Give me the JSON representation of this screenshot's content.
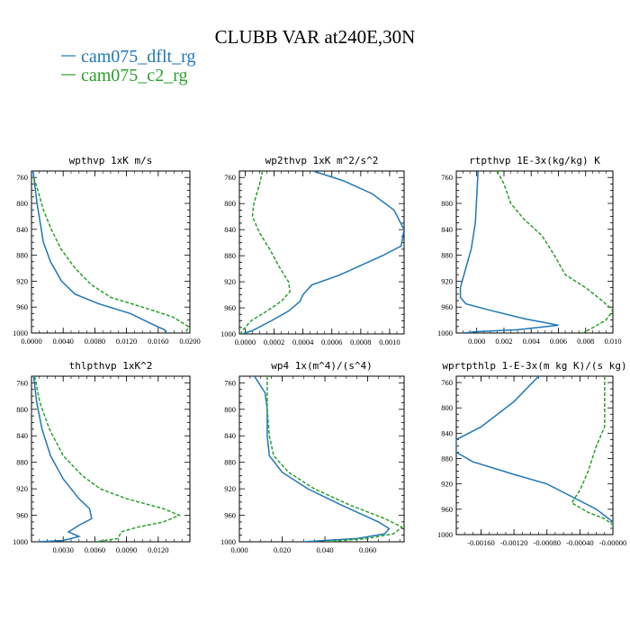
{
  "figure": {
    "title": "CLUBB VAR at240E,30N",
    "legend": [
      {
        "label": "cam075_dflt_rg",
        "color": "#1f77b4"
      },
      {
        "label": "cam075_c2_rg",
        "color": "#2ca02c"
      }
    ]
  },
  "chart_data": [
    {
      "type": "line",
      "title": "wpthvp  1xK m/s",
      "xlim": [
        0,
        0.02
      ],
      "ylim": [
        1000,
        750
      ],
      "x_ticks": [
        "0.0000",
        "0.0040",
        "0.0080",
        "0.0120",
        "0.0160",
        "0.0200"
      ],
      "x_tick_values": [
        0,
        0.004,
        0.008,
        0.012,
        0.016,
        0.02
      ],
      "y_ticks": [
        "760",
        "800",
        "840",
        "880",
        "920",
        "960",
        "1000"
      ],
      "y_tick_values": [
        760,
        800,
        840,
        880,
        920,
        960,
        1000
      ],
      "series": [
        {
          "name": "cam075_dflt_rg",
          "color": "#1f77b4",
          "dash": "",
          "points": [
            [
              0.0002,
              750
            ],
            [
              0.0004,
              770
            ],
            [
              0.0007,
              800
            ],
            [
              0.0011,
              830
            ],
            [
              0.0015,
              860
            ],
            [
              0.0024,
              890
            ],
            [
              0.0038,
              920
            ],
            [
              0.0055,
              940
            ],
            [
              0.0085,
              955
            ],
            [
              0.0125,
              970
            ],
            [
              0.015,
              985
            ],
            [
              0.0168,
              995
            ],
            [
              0.017,
              1000
            ]
          ]
        },
        {
          "name": "cam075_c2_rg",
          "color": "#2ca02c",
          "dash": "4,2",
          "points": [
            [
              0.0003,
              760
            ],
            [
              0.0008,
              780
            ],
            [
              0.0015,
              810
            ],
            [
              0.0025,
              840
            ],
            [
              0.0037,
              870
            ],
            [
              0.0055,
              900
            ],
            [
              0.0075,
              925
            ],
            [
              0.01,
              945
            ],
            [
              0.014,
              960
            ],
            [
              0.0178,
              975
            ],
            [
              0.0198,
              990
            ],
            [
              0.0195,
              1000
            ]
          ]
        }
      ]
    },
    {
      "type": "line",
      "title": "wp2thvp  1xK m^2/s^2",
      "xlim": [
        -4e-05,
        0.0011
      ],
      "ylim": [
        1000,
        750
      ],
      "x_ticks": [
        "0.0000",
        "0.0002",
        "0.0004",
        "0.0006",
        "0.0008",
        "0.0010"
      ],
      "x_tick_values": [
        0,
        0.0002,
        0.0004,
        0.0006,
        0.0008,
        0.001
      ],
      "y_ticks": [
        "760",
        "800",
        "840",
        "880",
        "920",
        "960",
        "1000"
      ],
      "y_tick_values": [
        760,
        800,
        840,
        880,
        920,
        960,
        1000
      ],
      "series": [
        {
          "name": "cam075_dflt_rg",
          "color": "#1f77b4",
          "dash": "",
          "points": [
            [
              0.00047,
              750
            ],
            [
              0.00068,
              765
            ],
            [
              0.00088,
              785
            ],
            [
              0.00103,
              810
            ],
            [
              0.0011,
              840
            ],
            [
              0.00108,
              865
            ],
            [
              0.00095,
              880
            ],
            [
              0.0008,
              895
            ],
            [
              0.00065,
              910
            ],
            [
              0.00046,
              925
            ],
            [
              0.0004,
              940
            ],
            [
              0.00038,
              950
            ],
            [
              0.0003,
              965
            ],
            [
              0.00018,
              980
            ],
            [
              5e-05,
              995
            ],
            [
              -2e-05,
              1000
            ]
          ]
        },
        {
          "name": "cam075_c2_rg",
          "color": "#2ca02c",
          "dash": "4,2",
          "points": [
            [
              0.00012,
              750
            ],
            [
              0.0001,
              770
            ],
            [
              6e-05,
              800
            ],
            [
              5e-05,
              820
            ],
            [
              0.0001,
              845
            ],
            [
              0.00017,
              870
            ],
            [
              0.00023,
              895
            ],
            [
              0.0003,
              920
            ],
            [
              0.00031,
              935
            ],
            [
              0.00025,
              950
            ],
            [
              0.00015,
              965
            ],
            [
              4e-05,
              980
            ],
            [
              -2e-05,
              995
            ],
            [
              -3e-05,
              1000
            ]
          ]
        }
      ]
    },
    {
      "type": "line",
      "title": "rtpthvp  1E-3x(kg/kg) K",
      "xlim": [
        -0.0015,
        0.01
      ],
      "ylim": [
        1000,
        750
      ],
      "x_ticks": [
        "0.000",
        "0.002",
        "0.004",
        "0.006",
        "0.008",
        "0.010"
      ],
      "x_tick_values": [
        0,
        0.002,
        0.004,
        0.006,
        0.008,
        0.01
      ],
      "y_ticks": [
        "760",
        "800",
        "840",
        "880",
        "920",
        "960",
        "1000"
      ],
      "y_tick_values": [
        760,
        800,
        840,
        880,
        920,
        960,
        1000
      ],
      "series": [
        {
          "name": "cam075_dflt_rg",
          "color": "#1f77b4",
          "dash": "",
          "points": [
            [
              0.0001,
              750
            ],
            [
              0.0,
              790
            ],
            [
              -0.0001,
              830
            ],
            [
              -0.0004,
              870
            ],
            [
              -0.0008,
              900
            ],
            [
              -0.0012,
              930
            ],
            [
              -0.0012,
              945
            ],
            [
              -0.0008,
              955
            ],
            [
              0.001,
              965
            ],
            [
              0.0035,
              978
            ],
            [
              0.006,
              988
            ],
            [
              0.003,
              995
            ],
            [
              0.0,
              998
            ],
            [
              -0.001,
              1000
            ]
          ]
        },
        {
          "name": "cam075_c2_rg",
          "color": "#2ca02c",
          "dash": "4,2",
          "points": [
            [
              0.0015,
              750
            ],
            [
              0.002,
              770
            ],
            [
              0.0025,
              800
            ],
            [
              0.0035,
              825
            ],
            [
              0.0048,
              850
            ],
            [
              0.0057,
              880
            ],
            [
              0.0065,
              910
            ],
            [
              0.008,
              930
            ],
            [
              0.0092,
              950
            ],
            [
              0.01,
              965
            ],
            [
              0.0095,
              980
            ],
            [
              0.0085,
              992
            ],
            [
              0.0078,
              1000
            ]
          ]
        }
      ]
    },
    {
      "type": "line",
      "title": "thlpthvp  1xK^2",
      "xlim": [
        0,
        0.015
      ],
      "ylim": [
        1000,
        750
      ],
      "x_ticks": [
        "0.0030",
        "0.0060",
        "0.0090",
        "0.0120"
      ],
      "x_tick_values": [
        0.003,
        0.006,
        0.009,
        0.012
      ],
      "y_ticks": [
        "760",
        "800",
        "840",
        "880",
        "920",
        "960",
        "1000"
      ],
      "y_tick_values": [
        760,
        800,
        840,
        880,
        920,
        960,
        1000
      ],
      "series": [
        {
          "name": "cam075_dflt_rg",
          "color": "#1f77b4",
          "dash": "",
          "points": [
            [
              0.0002,
              750
            ],
            [
              0.0005,
              790
            ],
            [
              0.001,
              830
            ],
            [
              0.0018,
              870
            ],
            [
              0.003,
              905
            ],
            [
              0.0045,
              935
            ],
            [
              0.0055,
              950
            ],
            [
              0.0057,
              965
            ],
            [
              0.0045,
              975
            ],
            [
              0.0035,
              985
            ],
            [
              0.0045,
              992
            ],
            [
              0.003,
              998
            ],
            [
              0.0005,
              1000
            ]
          ]
        },
        {
          "name": "cam075_c2_rg",
          "color": "#2ca02c",
          "dash": "4,2",
          "points": [
            [
              0.0003,
              750
            ],
            [
              0.0008,
              790
            ],
            [
              0.0017,
              830
            ],
            [
              0.003,
              870
            ],
            [
              0.0048,
              900
            ],
            [
              0.0065,
              920
            ],
            [
              0.009,
              935
            ],
            [
              0.0125,
              950
            ],
            [
              0.014,
              960
            ],
            [
              0.0125,
              970
            ],
            [
              0.01,
              978
            ],
            [
              0.0085,
              985
            ],
            [
              0.0082,
              995
            ],
            [
              0.006,
              1000
            ]
          ]
        }
      ]
    },
    {
      "type": "line",
      "title": "wp4  1x(m^4)/(s^4)",
      "xlim": [
        0,
        0.077
      ],
      "ylim": [
        1000,
        750
      ],
      "x_ticks": [
        "0.000",
        "0.020",
        "0.040",
        "0.060"
      ],
      "x_tick_values": [
        0,
        0.02,
        0.04,
        0.06
      ],
      "y_ticks": [
        "760",
        "800",
        "840",
        "880",
        "920",
        "960",
        "1000"
      ],
      "y_tick_values": [
        760,
        800,
        840,
        880,
        920,
        960,
        1000
      ],
      "series": [
        {
          "name": "cam075_dflt_rg",
          "color": "#1f77b4",
          "dash": "",
          "points": [
            [
              0.007,
              750
            ],
            [
              0.012,
              775
            ],
            [
              0.013,
              800
            ],
            [
              0.013,
              840
            ],
            [
              0.014,
              870
            ],
            [
              0.02,
              895
            ],
            [
              0.032,
              920
            ],
            [
              0.048,
              945
            ],
            [
              0.065,
              970
            ],
            [
              0.07,
              980
            ],
            [
              0.068,
              988
            ],
            [
              0.055,
              995
            ],
            [
              0.03,
              1000
            ]
          ]
        },
        {
          "name": "cam075_c2_rg",
          "color": "#2ca02c",
          "dash": "4,2",
          "points": [
            [
              0.013,
              750
            ],
            [
              0.013,
              800
            ],
            [
              0.014,
              840
            ],
            [
              0.016,
              870
            ],
            [
              0.023,
              895
            ],
            [
              0.035,
              920
            ],
            [
              0.052,
              945
            ],
            [
              0.068,
              965
            ],
            [
              0.076,
              978
            ],
            [
              0.072,
              988
            ],
            [
              0.06,
              995
            ],
            [
              0.04,
              1000
            ]
          ]
        }
      ]
    },
    {
      "type": "line",
      "title": "wprtpthlp  1-E-3x(m kg K)/(s kg)",
      "xlim": [
        -0.0019,
        0.0
      ],
      "ylim": [
        1000,
        750
      ],
      "x_ticks": [
        "-0.00160",
        "-0.00120",
        "-0.00080",
        "-0.00040",
        "-0.00000"
      ],
      "x_tick_values": [
        -0.0016,
        -0.0012,
        -0.0008,
        -0.0004,
        0.0
      ],
      "y_ticks": [
        "760",
        "800",
        "840",
        "880",
        "920",
        "960",
        "1000"
      ],
      "y_tick_values": [
        760,
        800,
        840,
        880,
        920,
        960,
        1000
      ],
      "series": [
        {
          "name": "cam075_dflt_rg",
          "color": "#1f77b4",
          "dash": "",
          "points": [
            [
              -0.0009,
              750
            ],
            [
              -0.0012,
              790
            ],
            [
              -0.0016,
              830
            ],
            [
              -0.0019,
              850
            ],
            [
              -0.0019,
              870
            ],
            [
              -0.0017,
              885
            ],
            [
              -0.0012,
              905
            ],
            [
              -0.0008,
              920
            ],
            [
              -0.0005,
              940
            ],
            [
              -0.0002,
              960
            ],
            [
              -0.0001,
              970
            ],
            [
              0.0,
              980
            ],
            [
              0.0,
              990
            ]
          ]
        },
        {
          "name": "cam075_c2_rg",
          "color": "#2ca02c",
          "dash": "4,2",
          "points": [
            [
              -0.0001,
              750
            ],
            [
              -0.0001,
              800
            ],
            [
              -0.0001,
              830
            ],
            [
              -0.0002,
              860
            ],
            [
              -0.0003,
              900
            ],
            [
              -0.0004,
              930
            ],
            [
              -0.0005,
              950
            ],
            [
              -0.0003,
              965
            ],
            [
              -0.0001,
              975
            ],
            [
              0.0,
              985
            ],
            [
              0.0,
              990
            ]
          ]
        }
      ]
    }
  ]
}
